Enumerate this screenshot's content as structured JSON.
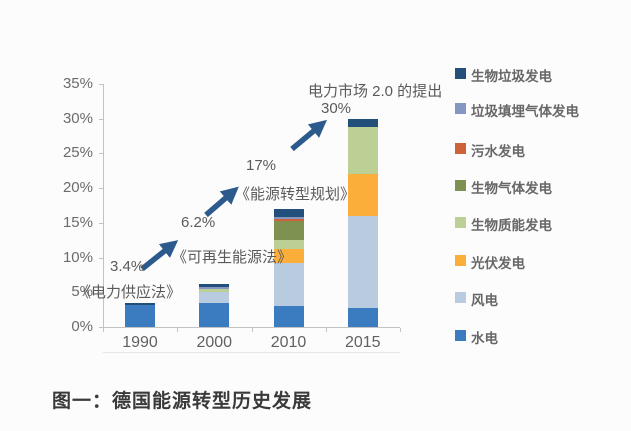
{
  "figure": {
    "caption": "图一：德国能源转型历史发展"
  },
  "chart_data": {
    "type": "bar",
    "stacked": true,
    "title": "",
    "xlabel": "",
    "ylabel": "",
    "ylim": [
      0,
      35
    ],
    "grid": false,
    "legend_position": "right",
    "categories": [
      "1990",
      "2000",
      "2010",
      "2015"
    ],
    "ytick_labels": [
      "35%",
      "30%",
      "25%",
      "20%",
      "15%",
      "10%",
      "5%",
      "0%"
    ],
    "totals": [
      3.4,
      6.2,
      17,
      30
    ],
    "series": [
      {
        "name": "水电",
        "color": "#3a7cbf",
        "values": [
          3.1,
          3.5,
          3.0,
          2.7
        ]
      },
      {
        "name": "风电",
        "color": "#b9cbdf",
        "values": [
          0,
          1.6,
          6.2,
          13.3
        ]
      },
      {
        "name": "光伏发电",
        "color": "#fbae3a",
        "values": [
          0,
          0,
          2.0,
          6.0
        ]
      },
      {
        "name": "生物质能发电",
        "color": "#bcd096",
        "values": [
          0,
          0.4,
          1.4,
          6.8
        ]
      },
      {
        "name": "生物气体发电",
        "color": "#7e9150",
        "values": [
          0,
          0,
          2.6,
          0
        ]
      },
      {
        "name": "污水发电",
        "color": "#ce6239",
        "values": [
          0,
          0,
          0.3,
          0
        ]
      },
      {
        "name": "垃圾填埋气体发电",
        "color": "#8497c3",
        "values": [
          0,
          0.3,
          0.3,
          0
        ]
      },
      {
        "name": "生物垃圾发电",
        "color": "#23507a",
        "values": [
          0.3,
          0.4,
          1.2,
          1.2
        ]
      }
    ],
    "legend_order": [
      "生物垃圾发电",
      "垃圾填埋气体发电",
      "污水发电",
      "生物气体发电",
      "生物质能发电",
      "光伏发电",
      "风电",
      "水电"
    ],
    "annotations": [
      {
        "pct": "3.4%",
        "label": "《电力供应法》"
      },
      {
        "pct": "6.2%",
        "label": "《可再生能源法》"
      },
      {
        "pct": "17%",
        "label": "《能源转型规划》"
      },
      {
        "pct": "30%",
        "label": "电力市场 2.0 的提出"
      }
    ],
    "arrow_color": "#2d5a8c"
  }
}
